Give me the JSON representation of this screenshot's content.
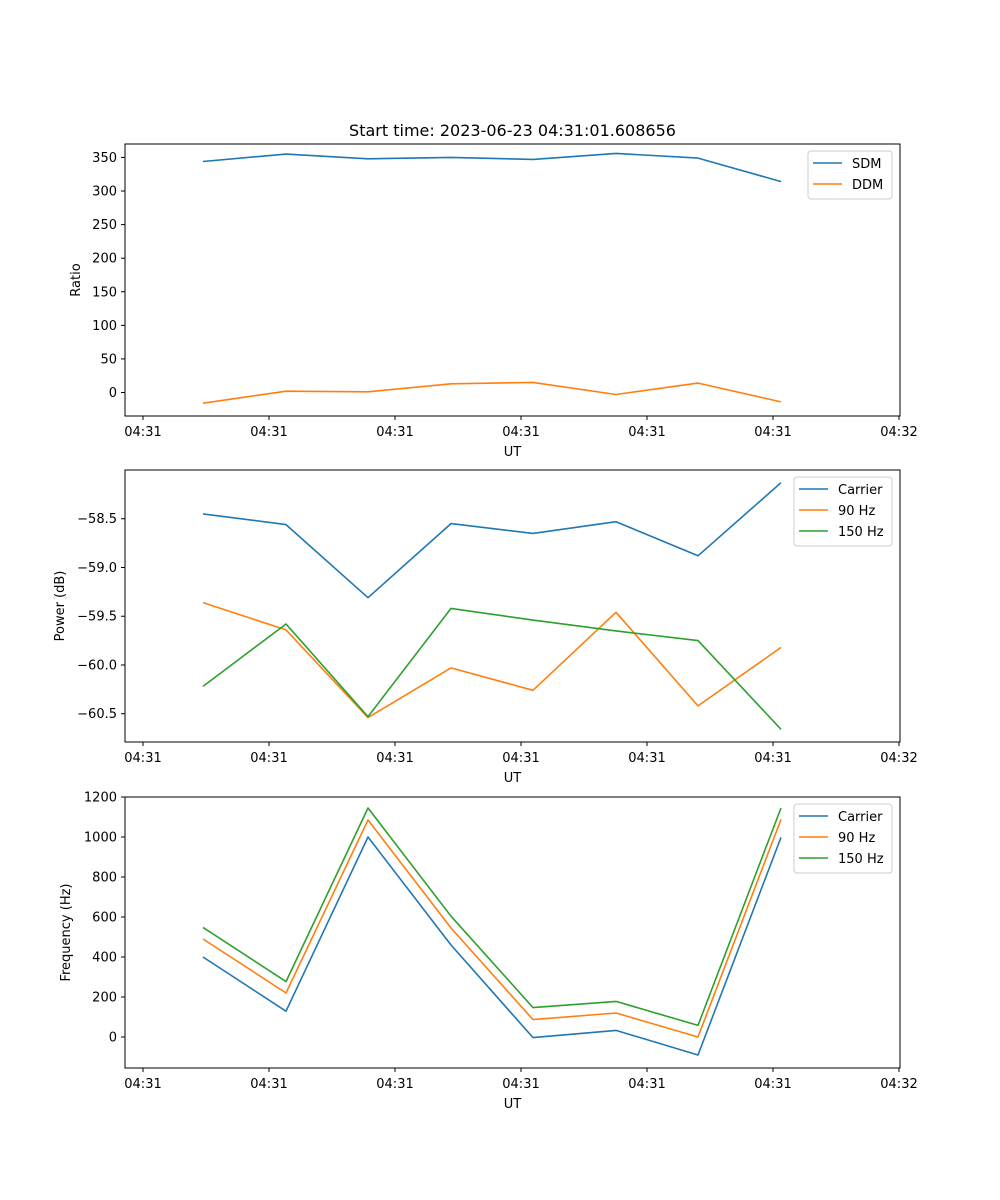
{
  "title": "Start time: 2023-06-23 04:31:01.608656",
  "chart_data": [
    {
      "type": "line",
      "xlabel": "UT",
      "ylabel": "Ratio",
      "x_tick_labels": [
        "04:31",
        "04:31",
        "04:31",
        "04:31",
        "04:31",
        "04:31",
        "04:32"
      ],
      "y_ticks": [
        0,
        50,
        100,
        150,
        200,
        250,
        300,
        350
      ],
      "ylim": [
        -35,
        370
      ],
      "legend_position": "top-right",
      "series": [
        {
          "name": "SDM",
          "color": "#1f77b4",
          "values": [
            344,
            355,
            348,
            350,
            347,
            356,
            349,
            314
          ]
        },
        {
          "name": "DDM",
          "color": "#ff7f0e",
          "values": [
            -16,
            2,
            1,
            13,
            15,
            -3,
            14,
            -14
          ]
        }
      ]
    },
    {
      "type": "line",
      "xlabel": "UT",
      "ylabel": "Power (dB)",
      "x_tick_labels": [
        "04:31",
        "04:31",
        "04:31",
        "04:31",
        "04:31",
        "04:31",
        "04:32"
      ],
      "y_ticks": [
        -60.5,
        -60.0,
        -59.5,
        -59.0,
        -58.5
      ],
      "y_tick_labels": [
        "−60.5",
        "−60.0",
        "−59.5",
        "−59.0",
        "−58.5"
      ],
      "ylim": [
        -60.79,
        -58.0
      ],
      "legend_position": "top-right",
      "series": [
        {
          "name": "Carrier",
          "color": "#1f77b4",
          "values": [
            -58.45,
            -58.56,
            -59.31,
            -58.55,
            -58.65,
            -58.53,
            -58.88,
            -58.13
          ]
        },
        {
          "name": "90 Hz",
          "color": "#ff7f0e",
          "values": [
            -59.36,
            -59.64,
            -60.54,
            -60.03,
            -60.26,
            -59.46,
            -60.42,
            -59.82
          ]
        },
        {
          "name": "150 Hz",
          "color": "#2ca02c",
          "values": [
            -60.22,
            -59.58,
            -60.53,
            -59.42,
            -59.54,
            -59.65,
            -59.75,
            -60.66
          ]
        }
      ]
    },
    {
      "type": "line",
      "xlabel": "UT",
      "ylabel": "Frequency (Hz)",
      "x_tick_labels": [
        "04:31",
        "04:31",
        "04:31",
        "04:31",
        "04:31",
        "04:31",
        "04:32"
      ],
      "y_ticks": [
        0,
        200,
        400,
        600,
        800,
        1000,
        1200
      ],
      "ylim": [
        -155,
        1200
      ],
      "legend_position": "top-right",
      "series": [
        {
          "name": "Carrier",
          "color": "#1f77b4",
          "values": [
            400,
            129,
            1000,
            460,
            -3,
            33,
            -90,
            998
          ]
        },
        {
          "name": "90 Hz",
          "color": "#ff7f0e",
          "values": [
            490,
            220,
            1085,
            545,
            87,
            120,
            0,
            1088
          ]
        },
        {
          "name": "150 Hz",
          "color": "#2ca02c",
          "values": [
            548,
            277,
            1145,
            604,
            147,
            178,
            58,
            1145
          ]
        }
      ]
    }
  ]
}
